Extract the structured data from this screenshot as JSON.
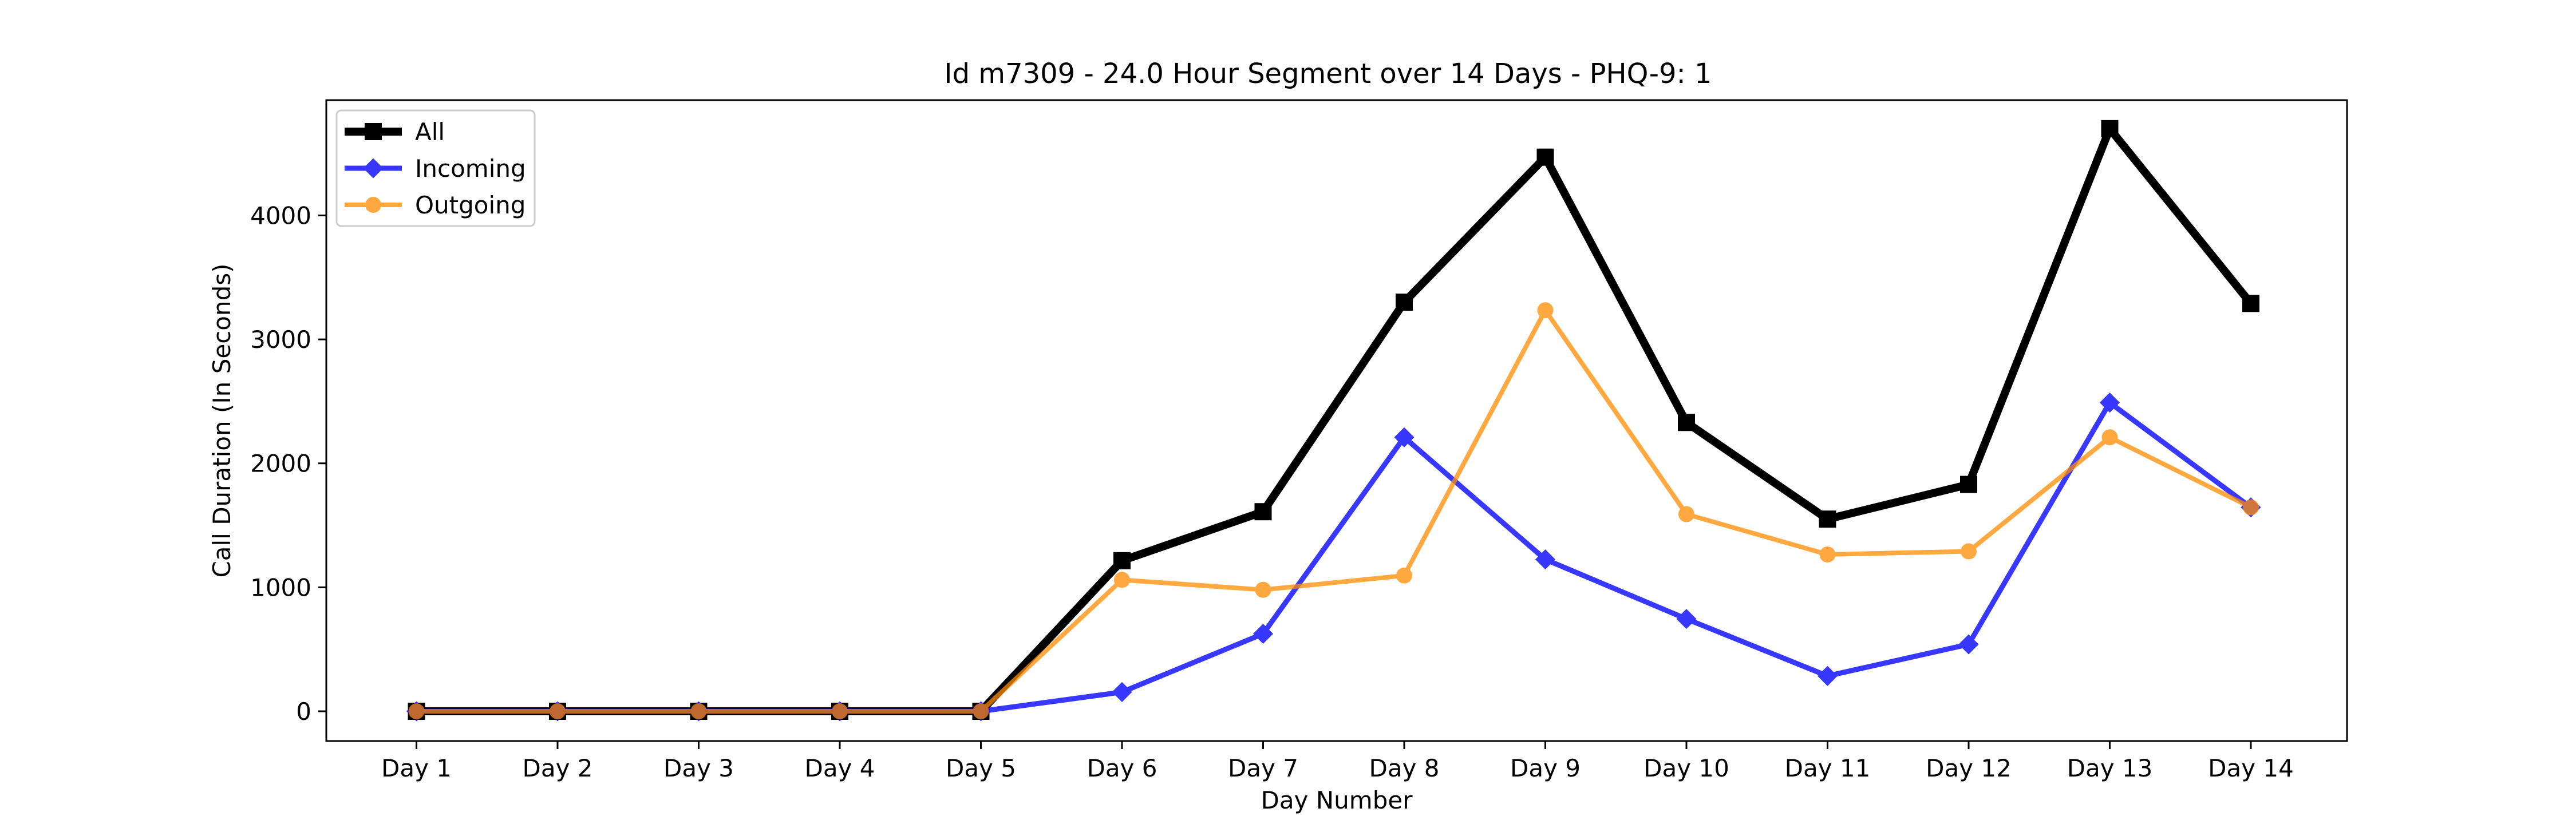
{
  "chart_data": {
    "type": "line",
    "title": "Id m7309 - 24.0 Hour Segment over 14 Days - PHQ-9: 1",
    "xlabel": "Day Number",
    "ylabel": "Call Duration (In Seconds)",
    "categories": [
      "Day 1",
      "Day 2",
      "Day 3",
      "Day 4",
      "Day 5",
      "Day 6",
      "Day 7",
      "Day 8",
      "Day 9",
      "Day 10",
      "Day 11",
      "Day 12",
      "Day 13",
      "Day 14"
    ],
    "yticks": [
      0,
      1000,
      2000,
      3000,
      4000
    ],
    "ylim": [
      -240,
      4930
    ],
    "grid": false,
    "legend": "top-left",
    "series": [
      {
        "name": "All",
        "color": "#000000",
        "marker": "square",
        "values": [
          0,
          0,
          0,
          0,
          0,
          1215,
          1610,
          3300,
          4470,
          2330,
          1550,
          1830,
          4700,
          3290
        ]
      },
      {
        "name": "Incoming",
        "color": "#0000ff",
        "marker": "diamond",
        "values": [
          0,
          0,
          0,
          0,
          0,
          155,
          625,
          2210,
          1225,
          745,
          285,
          540,
          2490,
          1645
        ]
      },
      {
        "name": "Outgoing",
        "color": "#ff8c00",
        "marker": "circle",
        "values": [
          0,
          0,
          0,
          0,
          0,
          1060,
          980,
          1095,
          3235,
          1590,
          1265,
          1290,
          2210,
          1645
        ]
      }
    ]
  }
}
